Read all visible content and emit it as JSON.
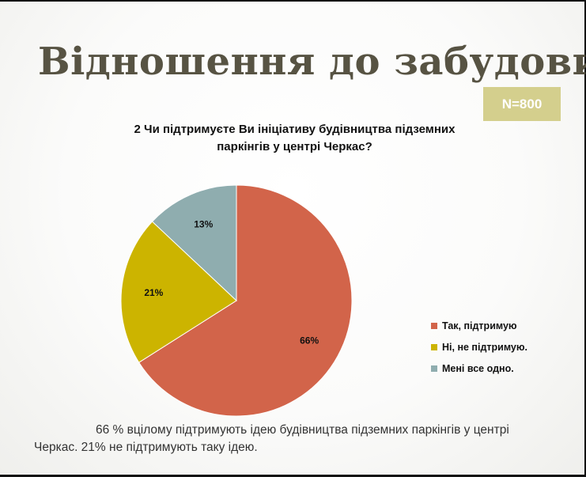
{
  "slide": {
    "title": "Відношення до забудови",
    "sample_badge": "N=800",
    "caption": "66 % вцілому підтримують ідею будівництва підземних паркінгів у центрі Черкас.  21% не підтримують таку ідею."
  },
  "chart_data": {
    "type": "pie",
    "title_line1": "2 Чи підтримуєте Ви ініціативу будівництва підземних",
    "title_line2": "паркінгів у центрі Черкас?",
    "categories": [
      "Так, підтримую",
      "Ні, не підтримую.",
      "Мені все одно."
    ],
    "values": [
      66,
      21,
      13
    ],
    "data_labels": [
      "66%",
      "21%",
      "13%"
    ],
    "colors": [
      "#d2644a",
      "#ccb400",
      "#8fadaf"
    ],
    "legend_position": "right"
  }
}
